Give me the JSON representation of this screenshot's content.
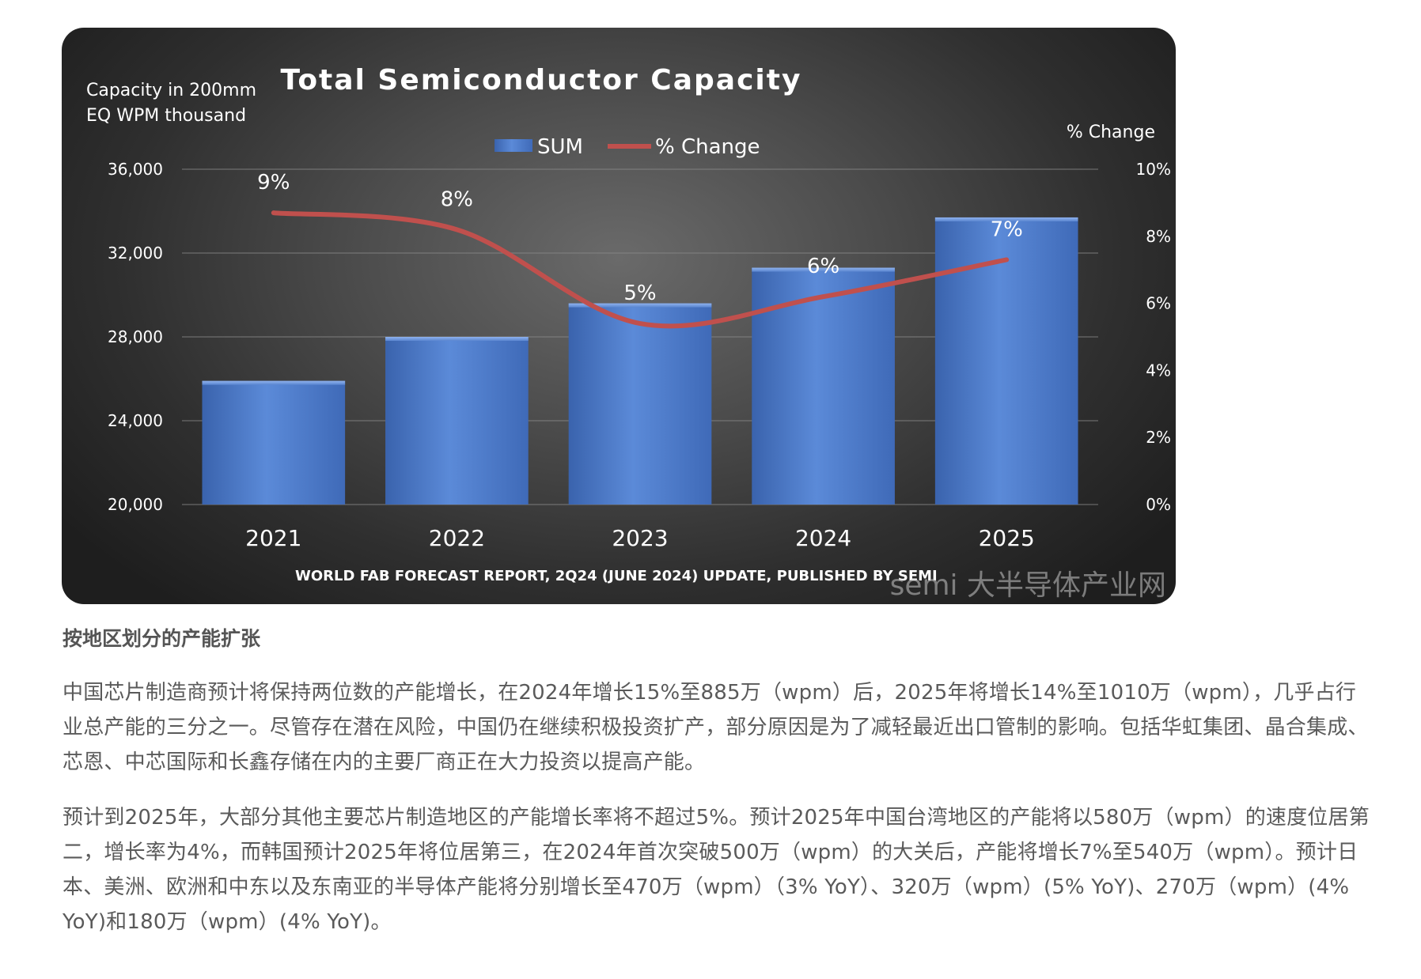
{
  "chart_data": {
    "type": "bar",
    "title": "Total Semiconductor Capacity",
    "ylabel_left": [
      "Capacity in 200mm",
      "EQ WPM thousand"
    ],
    "ylabel_right": "% Change",
    "categories": [
      "2021",
      "2022",
      "2023",
      "2024",
      "2025"
    ],
    "series": [
      {
        "name": "SUM",
        "kind": "bar",
        "axis": "left",
        "values": [
          25900,
          28000,
          29600,
          31300,
          33700
        ]
      },
      {
        "name": "% Change",
        "kind": "line",
        "axis": "right",
        "values": [
          8.7,
          8.2,
          5.4,
          6.2,
          7.3
        ],
        "labels": [
          "9%",
          "8%",
          "5%",
          "6%",
          "7%"
        ]
      }
    ],
    "ylim_left": [
      20000,
      36000
    ],
    "yticks_left": [
      {
        "v": 20000,
        "label": "20,000"
      },
      {
        "v": 24000,
        "label": "24,000"
      },
      {
        "v": 28000,
        "label": "28,000"
      },
      {
        "v": 32000,
        "label": "32,000"
      },
      {
        "v": 36000,
        "label": "36,000"
      }
    ],
    "ylim_right": [
      0,
      10
    ],
    "yticks_right": [
      {
        "v": 0,
        "label": "0%"
      },
      {
        "v": 2,
        "label": "2%"
      },
      {
        "v": 4,
        "label": "4%"
      },
      {
        "v": 6,
        "label": "6%"
      },
      {
        "v": 8,
        "label": "8%"
      },
      {
        "v": 10,
        "label": "10%"
      }
    ],
    "grid": true,
    "legend_position": "top-center",
    "source_note": "WORLD FAB FORECAST REPORT, 2Q24 (JUNE 2024) UPDATE, PUBLISHED BY SEMI",
    "colors": {
      "bar": "#4f7fd0",
      "line": "#c0504d",
      "text": "#ffffff"
    }
  },
  "watermark": {
    "text": "semi 大半导体产业网"
  },
  "article": {
    "heading": "按地区划分的产能扩张",
    "paragraphs": [
      "中国芯片制造商预计将保持两位数的产能增长，在2024年增长15%至885万（wpm）后，2025年将增长14%至1010万（wpm），几乎占行业总产能的三分之一。尽管存在潜在风险，中国仍在继续积极投资扩产，部分原因是为了减轻最近出口管制的影响。包括华虹集团、晶合集成、芯恩、中芯国际和长鑫存储在内的主要厂商正在大力投资以提高产能。",
      "预计到2025年，大部分其他主要芯片制造地区的产能增长率将不超过5%。预计2025年中国台湾地区的产能将以580万（wpm）的速度位居第二，增长率为4%，而韩国预计2025年将位居第三，在2024年首次突破500万（wpm）的大关后，产能将增长7%至540万（wpm）。预计日本、美洲、欧洲和中东以及东南亚的半导体产能将分别增长至470万（wpm）（3% YoY）、320万（wpm）(5% YoY)、270万（wpm）(4% YoY)和180万（wpm）(4% YoY)。"
    ]
  }
}
